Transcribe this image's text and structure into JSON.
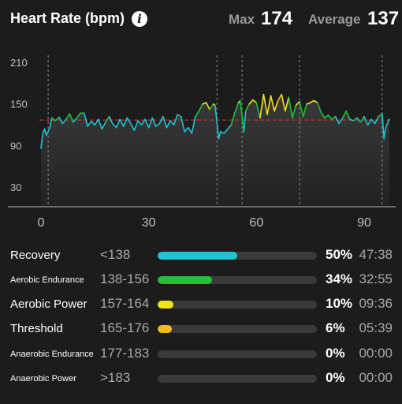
{
  "header": {
    "title": "Heart Rate (bpm)",
    "max_label": "Max",
    "max_value": "174",
    "average_label": "Average",
    "average_value": "137"
  },
  "colors": {
    "recovery": "#1ec6d4",
    "aerobic_endurance": "#1fc03a",
    "aerobic_power": "#f2e21a",
    "threshold": "#f5b820",
    "average_line": "#e03232"
  },
  "chart_data": {
    "type": "line",
    "x_ticks": [
      "0",
      "30",
      "60",
      "90"
    ],
    "y_ticks": [
      "210",
      "150",
      "90",
      "30"
    ],
    "xlim": [
      -2,
      97
    ],
    "ylim": [
      10,
      230
    ],
    "average_line": 137,
    "lap_markers": [
      2,
      49,
      56,
      72,
      95
    ],
    "series": [
      {
        "x": [
          0,
          0.5,
          1,
          1.5,
          2.5,
          3,
          4,
          5,
          6,
          7,
          8,
          9,
          10,
          11,
          12,
          13,
          14,
          15,
          16,
          17,
          18,
          19,
          20,
          21,
          22,
          23,
          24,
          25,
          26,
          27,
          28,
          29,
          30,
          31,
          32,
          33,
          34,
          35,
          36,
          37,
          38,
          39,
          40,
          41,
          42,
          43,
          44,
          45,
          46,
          47,
          48,
          48.5,
          49.5,
          50,
          51,
          52,
          53,
          54,
          55,
          55.5,
          56.5,
          57,
          58,
          59,
          60,
          61,
          62,
          63,
          64,
          65,
          66,
          67,
          68,
          69,
          70,
          71,
          72,
          73,
          74,
          75,
          76,
          77,
          78,
          79,
          80,
          81,
          82,
          83,
          84,
          85,
          86,
          87,
          88,
          89,
          90,
          91,
          92,
          93,
          94,
          95,
          95.5,
          96,
          97
        ],
        "y": [
          96,
          118,
          124,
          115,
          126,
          140,
          136,
          141,
          132,
          138,
          146,
          134,
          140,
          147,
          147,
          128,
          135,
          130,
          138,
          124,
          134,
          142,
          131,
          126,
          138,
          128,
          140,
          132,
          122,
          136,
          130,
          138,
          126,
          140,
          128,
          132,
          142,
          126,
          136,
          130,
          145,
          142,
          120,
          126,
          118,
          142,
          150,
          160,
          162,
          152,
          160,
          158,
          110,
          120,
          118,
          124,
          130,
          148,
          162,
          165,
          120,
          150,
          160,
          166,
          162,
          140,
          174,
          145,
          172,
          150,
          165,
          174,
          150,
          170,
          140,
          158,
          164,
          142,
          160,
          162,
          165,
          162,
          148,
          140,
          144,
          138,
          142,
          132,
          140,
          150,
          138,
          136,
          140,
          134,
          142,
          130,
          138,
          132,
          142,
          146,
          110,
          126,
          138
        ]
      }
    ]
  },
  "zones": [
    {
      "name": "Recovery",
      "range": "<138",
      "percent": "50%",
      "time": "47:38",
      "fill": 0.5,
      "color": "#1ec6d4",
      "size": "big"
    },
    {
      "name": "Aerobic Endurance",
      "range": "138-156",
      "percent": "34%",
      "time": "32:55",
      "fill": 0.34,
      "color": "#1fc03a",
      "size": "small"
    },
    {
      "name": "Aerobic Power",
      "range": "157-164",
      "percent": "10%",
      "time": "09:36",
      "fill": 0.1,
      "color": "#f2e21a",
      "size": "big"
    },
    {
      "name": "Threshold",
      "range": "165-176",
      "percent": "6%",
      "time": "05:39",
      "fill": 0.06,
      "color": "#f5b820",
      "size": "big"
    },
    {
      "name": "Anaerobic Endurance",
      "range": "177-183",
      "percent": "0%",
      "time": "00:00",
      "fill": 0,
      "color": "#e05a2a",
      "size": "small"
    },
    {
      "name": "Anaerobic Power",
      "range": ">183",
      "percent": "0%",
      "time": "00:00",
      "fill": 0,
      "color": "#d02828",
      "size": "small"
    }
  ]
}
